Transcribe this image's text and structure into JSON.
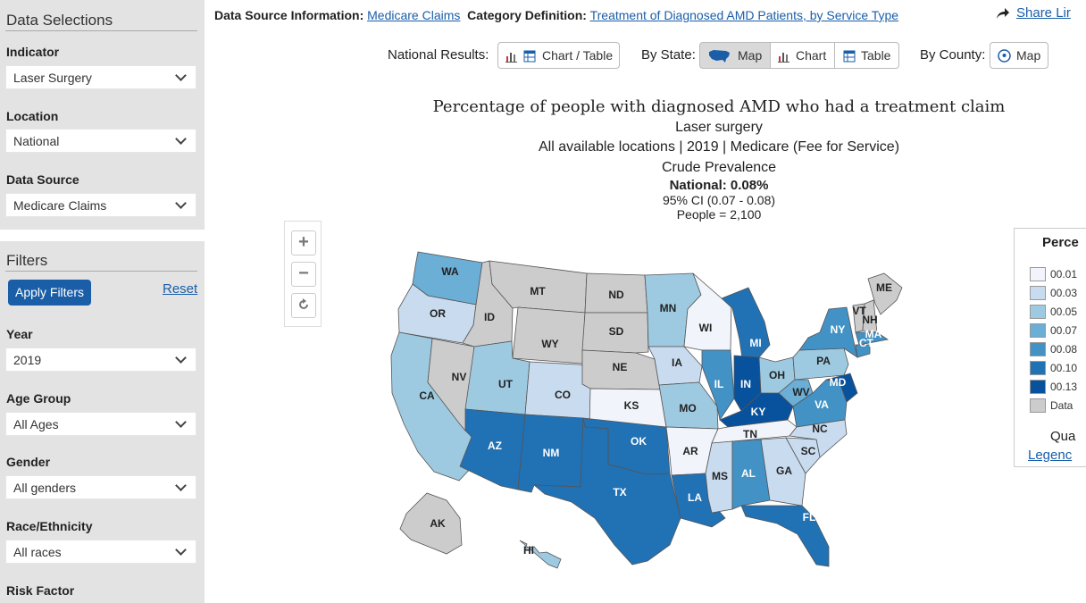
{
  "sidebar": {
    "data_selections_title": "Data Selections",
    "indicator_label": "Indicator",
    "indicator_value": "Laser Surgery",
    "location_label": "Location",
    "location_value": "National",
    "data_source_label": "Data Source",
    "data_source_value": "Medicare Claims",
    "filters_title": "Filters",
    "apply_label": "Apply Filters",
    "reset_label": "Reset",
    "year_label": "Year",
    "year_value": "2019",
    "age_label": "Age Group",
    "age_value": "All Ages",
    "gender_label": "Gender",
    "gender_value": "All genders",
    "race_label": "Race/Ethnicity",
    "race_value": "All races",
    "risk_label": "Risk Factor"
  },
  "info": {
    "source_label": "Data Source Information:",
    "source_link": "Medicare Claims",
    "category_label": "Category Definition:",
    "category_link": "Treatment of Diagnosed AMD Patients, by Service Type",
    "share": "Share Lir"
  },
  "controls": {
    "national_label": "National Results:",
    "national_btn": "Chart / Table",
    "state_label": "By State:",
    "map_btn": "Map",
    "chart_btn": "Chart",
    "table_btn": "Table",
    "county_label": "By County:",
    "county_map_btn": "Map"
  },
  "titles": {
    "main": "Percentage of people with diagnosed AMD who had a treatment claim",
    "sub1": "Laser surgery",
    "sub2": "All available locations | 2019 | Medicare (Fee for Service)",
    "prevalence": "Crude Prevalence",
    "national": "National: 0.08%",
    "ci": "95% CI (0.07 - 0.08)",
    "people": "People = 2,100"
  },
  "legend": {
    "title": "Perce",
    "items": [
      {
        "label": "00.01",
        "color": "#f1f5fb"
      },
      {
        "label": "00.03",
        "color": "#c9dcef"
      },
      {
        "label": "00.05",
        "color": "#9ecae1"
      },
      {
        "label": "00.07",
        "color": "#6baed6"
      },
      {
        "label": "00.08",
        "color": "#4292c6"
      },
      {
        "label": "00.10",
        "color": "#2171b5"
      },
      {
        "label": "00.13",
        "color": "#08519c"
      },
      {
        "label": "Data",
        "color": "#cccccc"
      }
    ],
    "quantile": "Qua",
    "legend_link": "Legenc"
  },
  "map": {
    "states": [
      "WA",
      "OR",
      "CA",
      "NV",
      "ID",
      "MT",
      "WY",
      "UT",
      "AZ",
      "CO",
      "NM",
      "ND",
      "SD",
      "NE",
      "KS",
      "OK",
      "TX",
      "MN",
      "IA",
      "MO",
      "AR",
      "LA",
      "WI",
      "IL",
      "MI",
      "IN",
      "KY",
      "TN",
      "MS",
      "AL",
      "GA",
      "FL",
      "OH",
      "WV",
      "VA",
      "NC",
      "SC",
      "PA",
      "NY",
      "MD",
      "ME",
      "VT",
      "NH",
      "MA",
      "CT",
      "AK",
      "HI"
    ]
  }
}
